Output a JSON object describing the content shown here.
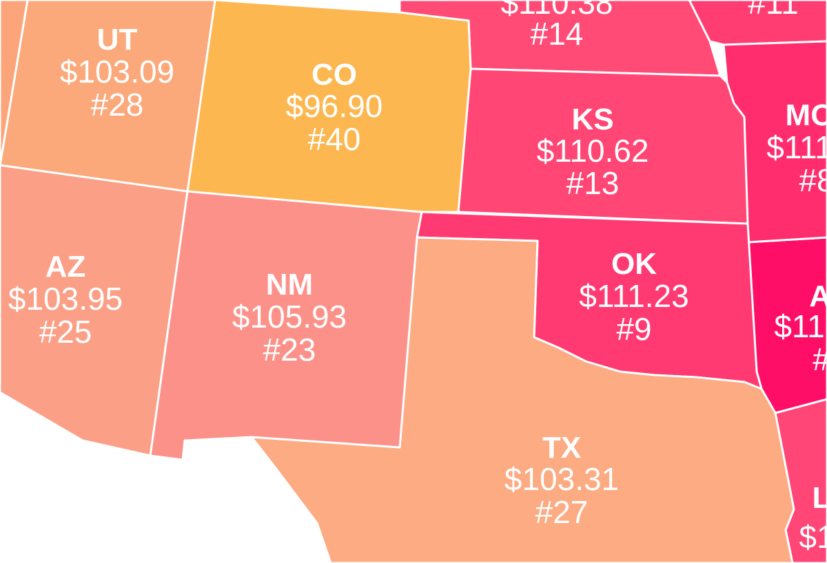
{
  "colors": {
    "background": "#ffffff",
    "border": "#ffffff",
    "label_text": "#ffffff"
  },
  "states": [
    {
      "id": "co",
      "abbr": "CO",
      "value": "$96.90",
      "rank": "#40",
      "color": "#fdb750"
    },
    {
      "id": "ut",
      "abbr": "UT",
      "value": "$103.09",
      "rank": "#28",
      "color": "#fba87a"
    },
    {
      "id": "az",
      "abbr": "AZ",
      "value": "$103.95",
      "rank": "#25",
      "color": "#fb9f86"
    },
    {
      "id": "nm",
      "abbr": "NM",
      "value": "$105.93",
      "rank": "#23",
      "color": "#fc918a"
    },
    {
      "id": "tx",
      "abbr": "TX",
      "value": "$103.31",
      "rank": "#27",
      "color": "#fcab82"
    },
    {
      "id": "ks",
      "abbr": "KS",
      "value": "$110.62",
      "rank": "#13",
      "color": "#ff4674"
    },
    {
      "id": "ok",
      "abbr": "OK",
      "value": "$111.23",
      "rank": "#9",
      "color": "#ff3a72"
    },
    {
      "id": "ne",
      "abbr": "",
      "value": "$110.38",
      "rank": "#14",
      "color": "#ff4b76"
    },
    {
      "id": "mo",
      "abbr": "MO",
      "value": "$111",
      "rank": "#8",
      "color": "#ff2d6e"
    },
    {
      "id": "ar",
      "abbr": "A",
      "value": "$11",
      "rank": "#",
      "color": "#fe0e66"
    },
    {
      "id": "la",
      "abbr": "L",
      "value": "$1",
      "rank": "",
      "color": "#ff4677"
    },
    {
      "id": "ia",
      "abbr": "",
      "value": "",
      "rank": "#11",
      "color": "#ff3d72"
    }
  ]
}
